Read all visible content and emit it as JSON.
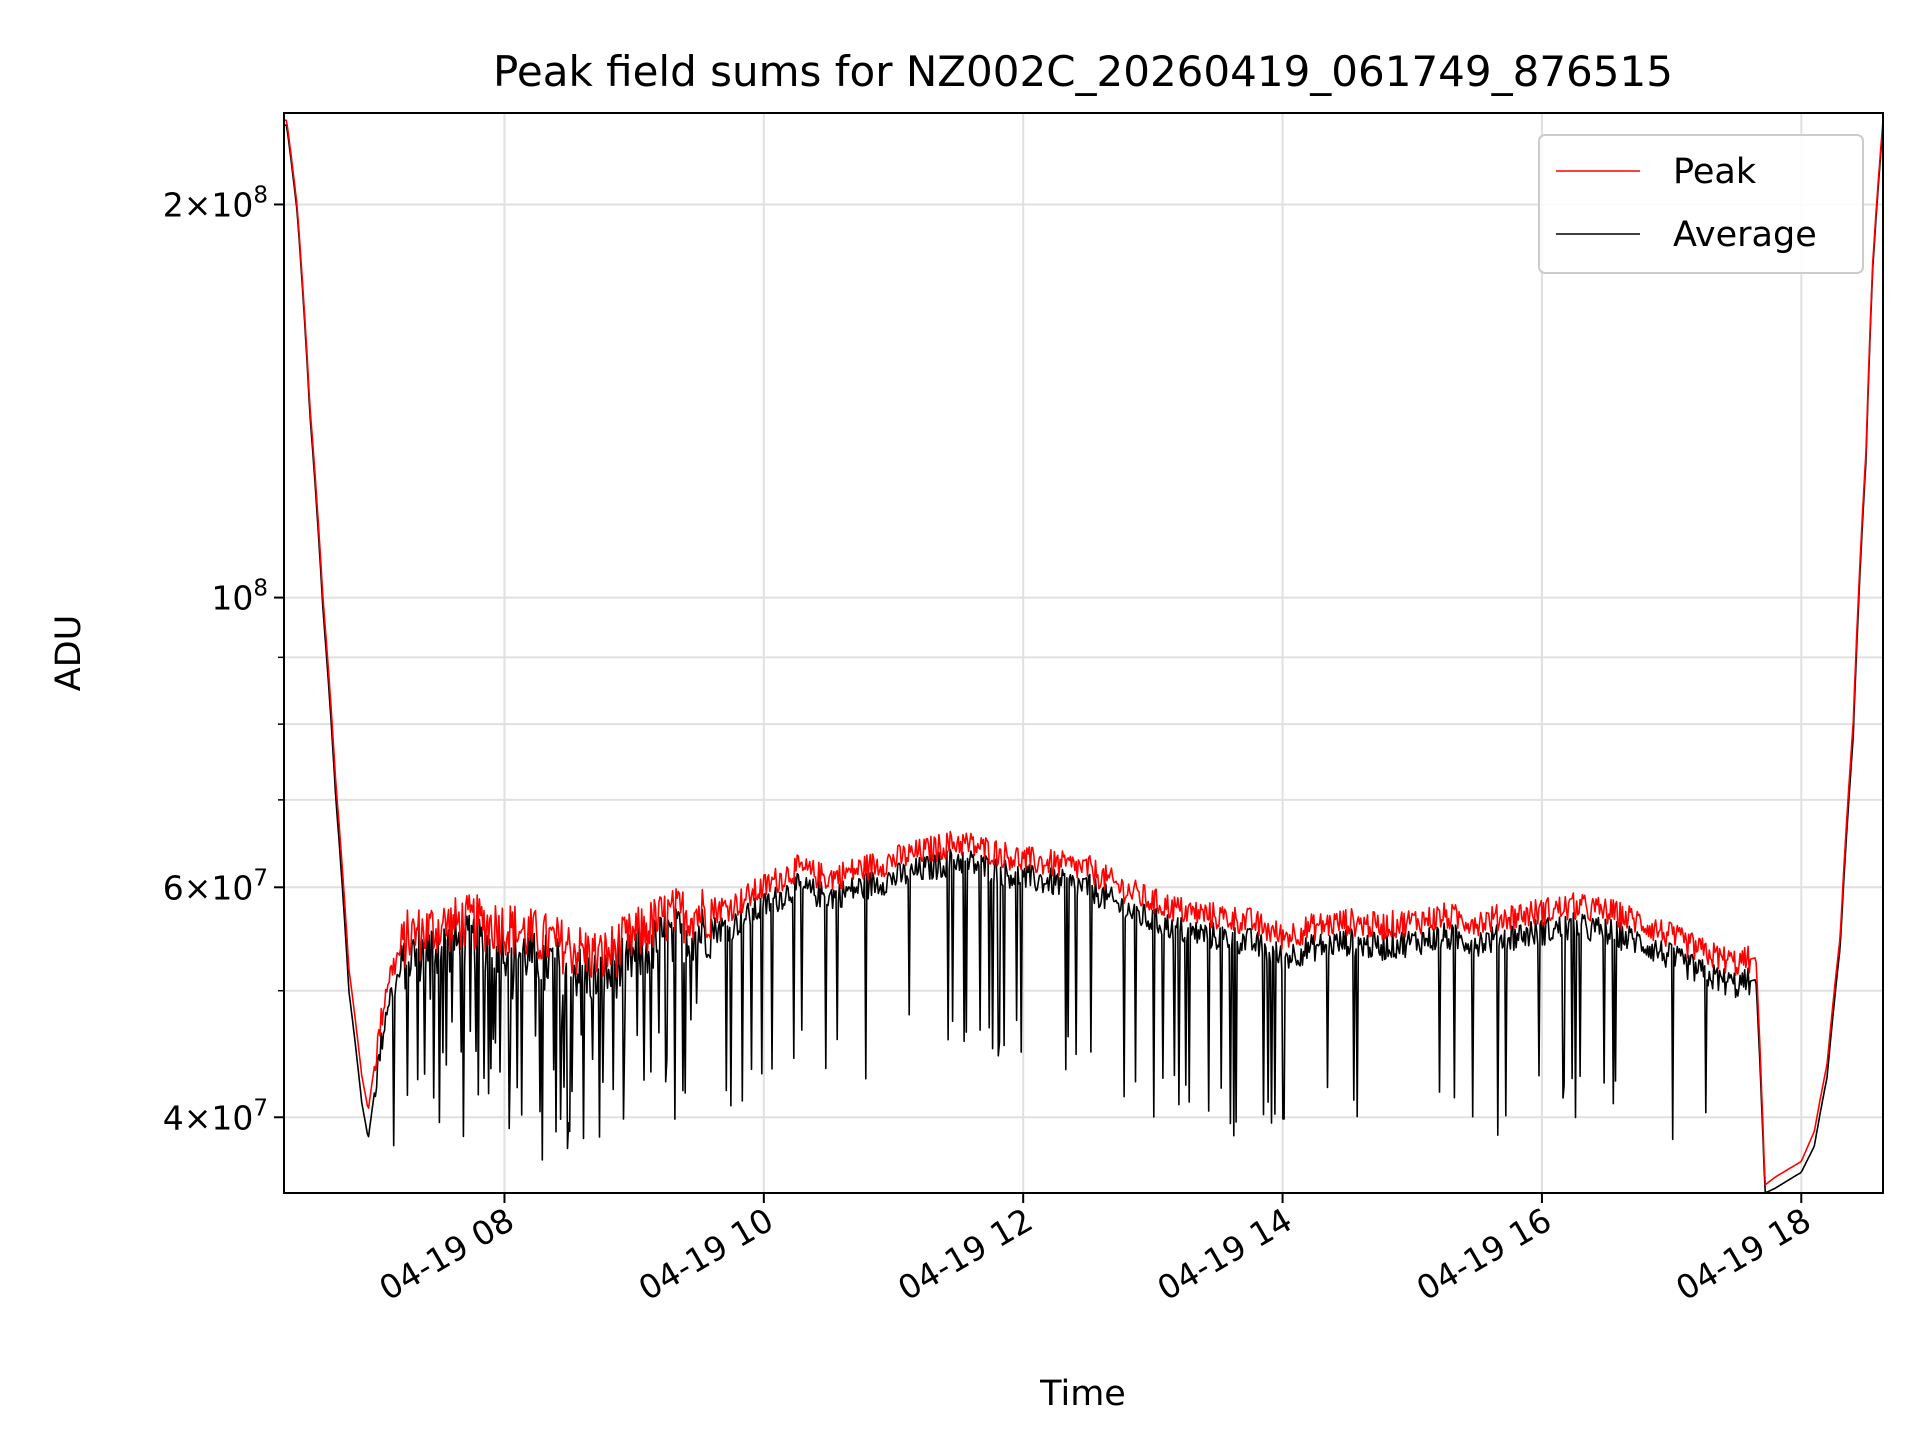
{
  "chart_data": {
    "type": "line",
    "title": "Peak field sums for NZ002C_20260419_061749_876515",
    "xlabel": "Time",
    "ylabel": "ADU",
    "yscale": "log",
    "xlim_hours": [
      6.3,
      18.63
    ],
    "ylim": [
      35000000,
      235000000
    ],
    "grid": true,
    "legend_position": "top-right",
    "x_ticks": [
      {
        "value": 8,
        "label": "04-19 08"
      },
      {
        "value": 10,
        "label": "04-19 10"
      },
      {
        "value": 12,
        "label": "04-19 12"
      },
      {
        "value": 14,
        "label": "04-19 14"
      },
      {
        "value": 16,
        "label": "04-19 16"
      },
      {
        "value": 18,
        "label": "04-19 18"
      }
    ],
    "y_ticks": [
      {
        "value": 40000000,
        "mantissa": "4",
        "base": "10",
        "exp": "7"
      },
      {
        "value": 60000000,
        "mantissa": "6",
        "base": "10",
        "exp": "7"
      },
      {
        "value": 100000000,
        "mantissa": "",
        "base": "10",
        "exp": "8"
      },
      {
        "value": 200000000,
        "mantissa": "2",
        "base": "10",
        "exp": "8"
      }
    ],
    "y_minor_ticks": [
      50000000,
      70000000,
      80000000,
      90000000
    ],
    "series": [
      {
        "name": "Peak",
        "color": "#ff0000",
        "x": [
          6.32,
          6.4,
          6.5,
          6.6,
          6.7,
          6.8,
          6.9,
          6.95,
          7.0,
          7.1,
          7.25,
          7.5,
          7.75,
          8.0,
          8.25,
          8.5,
          8.75,
          9.0,
          9.25,
          9.5,
          9.75,
          10.0,
          10.25,
          10.5,
          10.75,
          11.0,
          11.25,
          11.5,
          11.75,
          12.0,
          12.25,
          12.5,
          12.75,
          13.0,
          13.25,
          13.5,
          13.75,
          14.0,
          14.25,
          14.5,
          14.75,
          15.0,
          15.25,
          15.5,
          15.75,
          16.0,
          16.25,
          16.5,
          16.75,
          17.0,
          17.25,
          17.5,
          17.65,
          17.72,
          17.8,
          17.9,
          18.0,
          18.1,
          18.2,
          18.3,
          18.4,
          18.5,
          18.55,
          18.63
        ],
        "values": [
          232000000,
          200000000,
          140000000,
          100000000,
          72000000,
          52000000,
          43000000,
          40500000,
          44000000,
          51000000,
          55000000,
          56000000,
          56500000,
          56000000,
          55000000,
          54000000,
          53000000,
          55000000,
          57000000,
          57500000,
          58000000,
          60000000,
          62000000,
          61000000,
          62000000,
          63000000,
          64000000,
          65000000,
          64000000,
          63000000,
          62500000,
          62000000,
          60000000,
          58500000,
          57500000,
          57000000,
          56500000,
          55000000,
          56000000,
          56500000,
          56000000,
          56500000,
          57000000,
          56500000,
          57000000,
          57500000,
          58000000,
          57500000,
          56500000,
          55000000,
          53500000,
          52500000,
          53000000,
          35500000,
          36000000,
          36500000,
          37000000,
          39000000,
          44000000,
          55000000,
          80000000,
          130000000,
          180000000,
          232000000
        ]
      },
      {
        "name": "Average",
        "color": "#000000",
        "x": [
          6.32,
          6.4,
          6.5,
          6.6,
          6.7,
          6.8,
          6.9,
          6.95,
          7.0,
          7.1,
          7.25,
          7.5,
          7.75,
          8.0,
          8.25,
          8.5,
          8.75,
          9.0,
          9.25,
          9.5,
          9.75,
          10.0,
          10.25,
          10.5,
          10.75,
          11.0,
          11.25,
          11.5,
          11.75,
          12.0,
          12.25,
          12.5,
          12.75,
          13.0,
          13.25,
          13.5,
          13.75,
          14.0,
          14.25,
          14.5,
          14.75,
          15.0,
          15.25,
          15.5,
          15.75,
          16.0,
          16.25,
          16.5,
          16.75,
          17.0,
          17.25,
          17.5,
          17.65,
          17.72,
          17.8,
          17.9,
          18.0,
          18.1,
          18.2,
          18.3,
          18.4,
          18.5,
          18.55,
          18.63
        ],
        "values": [
          230000000,
          198000000,
          138000000,
          98000000,
          70000000,
          50000000,
          41000000,
          38500000,
          42000000,
          49000000,
          53000000,
          54000000,
          54500000,
          54000000,
          53000000,
          52000000,
          51000000,
          53000000,
          55000000,
          55500000,
          56000000,
          58000000,
          60000000,
          59000000,
          60000000,
          61000000,
          62000000,
          63000000,
          62000000,
          61000000,
          60500000,
          60000000,
          58000000,
          56500000,
          55500000,
          55000000,
          54500000,
          53000000,
          54000000,
          54500000,
          54000000,
          54500000,
          55000000,
          54500000,
          55000000,
          55500000,
          56000000,
          55500000,
          54500000,
          53000000,
          51500000,
          50500000,
          51000000,
          35000000,
          35300000,
          35800000,
          36300000,
          38000000,
          43000000,
          54000000,
          78000000,
          128000000,
          178000000,
          230000000
        ]
      }
    ]
  }
}
